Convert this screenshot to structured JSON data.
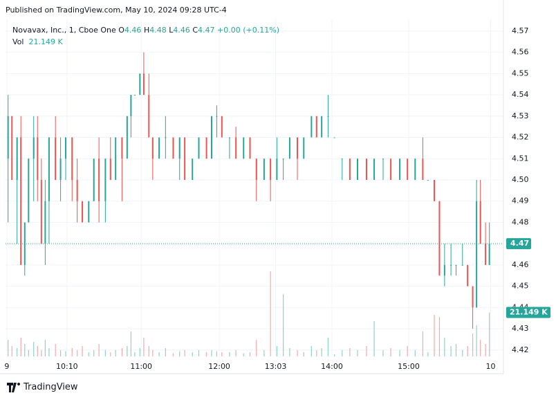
{
  "header": {
    "published": "Published on TradingView.com, May 10, 2024 09:28 UTC-4"
  },
  "legend": {
    "symbol": "Novavax, Inc., 1, Cboe One",
    "ohlc": [
      {
        "key": "O",
        "value": "4.46"
      },
      {
        "key": "H",
        "value": "4.48"
      },
      {
        "key": "L",
        "value": "4.46"
      },
      {
        "key": "C",
        "value": "4.47"
      }
    ],
    "change": "+0.00 (+0.11%)",
    "vol_key": "Vol",
    "vol_value": "21.149 K"
  },
  "brand": "TradingView",
  "chart_data": {
    "type": "candlestick",
    "x": [
      1,
      4,
      8,
      11,
      14,
      17,
      21,
      24,
      27,
      30,
      33,
      38,
      42,
      46,
      51,
      55,
      59,
      64,
      68,
      72,
      77,
      81,
      85,
      90,
      94,
      97,
      100,
      104,
      107,
      111,
      114,
      119,
      124,
      130,
      135,
      139,
      145,
      150,
      156,
      160,
      164,
      168,
      174,
      179,
      185,
      190,
      195,
      201,
      206,
      211,
      216,
      221,
      227,
      232,
      238,
      242,
      246,
      251,
      256,
      262,
      268,
      274,
      281,
      287,
      294,
      300,
      307,
      313,
      319,
      325,
      329,
      334,
      338,
      342,
      347,
      351,
      356,
      360,
      364,
      367,
      370,
      374,
      377
    ],
    "open": [
      4.51,
      4.53,
      4.5,
      4.52,
      4.46,
      4.48,
      4.51,
      4.52,
      4.5,
      4.47,
      4.49,
      4.52,
      4.5,
      4.51,
      4.52,
      4.5,
      4.49,
      4.48,
      4.49,
      4.51,
      4.49,
      4.51,
      4.5,
      4.52,
      4.51,
      4.53,
      4.54,
      4.54,
      4.55,
      4.54,
      4.52,
      4.51,
      4.52,
      4.52,
      4.51,
      4.52,
      4.5,
      4.51,
      4.52,
      4.51,
      4.53,
      4.53,
      4.52,
      4.52,
      4.51,
      4.52,
      4.51,
      4.5,
      4.51,
      4.5,
      4.51,
      4.51,
      4.52,
      4.51,
      4.52,
      4.53,
      4.52,
      4.53,
      4.52,
      4.51,
      4.51,
      4.5,
      4.51,
      4.5,
      4.51,
      4.51,
      4.5,
      4.51,
      4.5,
      4.51,
      4.5,
      4.5,
      4.49,
      4.455,
      4.46,
      4.46,
      4.46,
      4.46,
      4.45,
      4.44,
      4.49,
      4.47,
      4.46
    ],
    "high": [
      4.54,
      4.53,
      4.52,
      4.53,
      4.48,
      4.51,
      4.53,
      4.53,
      4.51,
      4.5,
      4.52,
      4.53,
      4.52,
      4.52,
      4.52,
      4.51,
      4.49,
      4.49,
      4.51,
      4.52,
      4.51,
      4.52,
      4.52,
      4.52,
      4.53,
      4.54,
      4.54,
      4.55,
      4.56,
      4.55,
      4.52,
      4.52,
      4.53,
      4.52,
      4.52,
      4.52,
      4.51,
      4.52,
      4.52,
      4.53,
      4.535,
      4.53,
      4.52,
      4.525,
      4.52,
      4.52,
      4.51,
      4.51,
      4.51,
      4.52,
      4.51,
      4.52,
      4.52,
      4.52,
      4.53,
      4.53,
      4.53,
      4.54,
      4.52,
      4.51,
      4.51,
      4.51,
      4.51,
      4.51,
      4.51,
      4.51,
      4.51,
      4.51,
      4.51,
      4.52,
      4.5,
      4.5,
      4.49,
      4.47,
      4.47,
      4.46,
      4.47,
      4.46,
      4.45,
      4.5,
      4.5,
      4.48,
      4.48
    ],
    "low": [
      4.48,
      4.5,
      4.47,
      4.46,
      4.455,
      4.48,
      4.49,
      4.49,
      4.47,
      4.46,
      4.47,
      4.5,
      4.49,
      4.5,
      4.49,
      4.48,
      4.48,
      4.48,
      4.49,
      4.48,
      4.48,
      4.5,
      4.5,
      4.49,
      4.51,
      4.52,
      4.54,
      4.54,
      4.54,
      4.52,
      4.5,
      4.51,
      4.51,
      4.51,
      4.5,
      4.5,
      4.5,
      4.51,
      4.51,
      4.51,
      4.52,
      4.52,
      4.51,
      4.51,
      4.51,
      4.51,
      4.49,
      4.5,
      4.49,
      4.5,
      4.5,
      4.51,
      4.5,
      4.51,
      4.52,
      4.52,
      4.52,
      4.52,
      4.52,
      4.5,
      4.5,
      4.5,
      4.5,
      4.5,
      4.5,
      4.5,
      4.5,
      4.5,
      4.5,
      4.5,
      4.5,
      4.49,
      4.455,
      4.45,
      4.455,
      4.455,
      4.46,
      4.45,
      4.43,
      4.44,
      4.47,
      4.46,
      4.46
    ],
    "close": [
      4.53,
      4.5,
      4.52,
      4.46,
      4.48,
      4.51,
      4.52,
      4.5,
      4.47,
      4.49,
      4.52,
      4.5,
      4.51,
      4.52,
      4.5,
      4.49,
      4.48,
      4.49,
      4.51,
      4.49,
      4.51,
      4.5,
      4.52,
      4.51,
      4.53,
      4.54,
      4.54,
      4.55,
      4.54,
      4.52,
      4.51,
      4.52,
      4.52,
      4.51,
      4.52,
      4.5,
      4.51,
      4.52,
      4.51,
      4.53,
      4.53,
      4.52,
      4.52,
      4.51,
      4.52,
      4.51,
      4.5,
      4.51,
      4.5,
      4.51,
      4.51,
      4.52,
      4.51,
      4.52,
      4.53,
      4.52,
      4.53,
      4.53,
      4.52,
      4.51,
      4.5,
      4.51,
      4.5,
      4.51,
      4.51,
      4.5,
      4.51,
      4.5,
      4.51,
      4.5,
      4.5,
      4.49,
      4.455,
      4.46,
      4.46,
      4.46,
      4.46,
      4.45,
      4.44,
      4.49,
      4.47,
      4.46,
      4.47
    ],
    "volume": [
      8000,
      5000,
      4000,
      9000,
      6000,
      3000,
      7000,
      5000,
      3000,
      8000,
      4000,
      6000,
      3000,
      2500,
      4000,
      3000,
      5000,
      2000,
      3000,
      6000,
      3000,
      2000,
      3000,
      4000,
      5000,
      12000,
      2000,
      4000,
      9000,
      5000,
      3000,
      2000,
      4000,
      1500,
      2500,
      3000,
      2000,
      3000,
      2000,
      3000,
      2500,
      2000,
      2000,
      3000,
      1500,
      2000,
      8000,
      3000,
      41000,
      5000,
      30000,
      4000,
      3000,
      2000,
      5000,
      3000,
      4000,
      9000,
      1000,
      3000,
      4000,
      3000,
      5000,
      17000,
      3000,
      4000,
      3000,
      5000,
      3000,
      12000,
      2000,
      20000,
      19000,
      9000,
      5000,
      6000,
      3000,
      5000,
      11000,
      15000,
      8000,
      6000,
      21149
    ],
    "up_color": "#26a69a",
    "down_color": "#ef5350",
    "xlim": [
      -1,
      388
    ],
    "ylim": [
      4.417,
      4.5755
    ],
    "vlim": [
      0,
      80000
    ],
    "xticks": [
      {
        "value": 0,
        "label": "9"
      },
      {
        "value": 47,
        "label": "10:10"
      },
      {
        "value": 105,
        "label": "11:00"
      },
      {
        "value": 166,
        "label": "12:00"
      },
      {
        "value": 210,
        "label": "13:03"
      },
      {
        "value": 254,
        "label": "14:00"
      },
      {
        "value": 314,
        "label": "15:00"
      },
      {
        "value": 378,
        "label": "10"
      }
    ],
    "yticks": [
      4.42,
      4.43,
      4.44,
      4.45,
      4.46,
      4.47,
      4.48,
      4.49,
      {
        "value": 4.5,
        "label": "4.50"
      },
      4.51,
      4.52,
      4.53,
      4.54,
      4.55,
      4.56,
      4.57
    ],
    "last_price_label": "4.47",
    "last_volume_label": "21.149 K",
    "grid": true
  }
}
